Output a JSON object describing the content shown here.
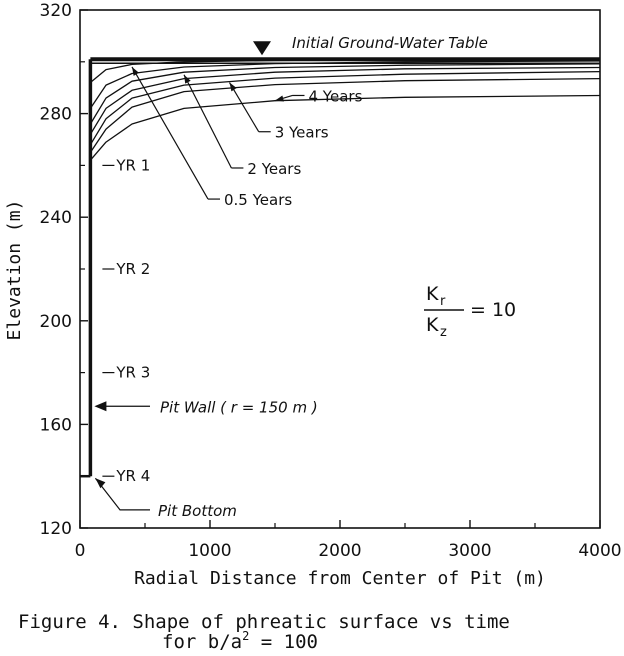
{
  "chart_data": {
    "type": "line",
    "xlabel": "Radial Distance from Center of Pit (m)",
    "ylabel": "Elevation (m)",
    "xlim": [
      0,
      4000
    ],
    "ylim": [
      120,
      320
    ],
    "x_ticks": [
      "0",
      "1000",
      "2000",
      "3000",
      "4000"
    ],
    "y_ticks": [
      "120",
      "160",
      "200",
      "240",
      "280",
      "320"
    ],
    "initial_water_table": {
      "label": "Initial Ground-Water Table",
      "elevation": 301
    },
    "pit_wall": {
      "label": "Pit Wall ( r = 150 m )",
      "x": 80,
      "top": 301,
      "bottom": 140
    },
    "pit_bottom": {
      "label": "Pit Bottom",
      "x": 0,
      "elevation": 140
    },
    "pit_level_labels": [
      {
        "label": "YR 1",
        "elevation": 260
      },
      {
        "label": "YR 2",
        "elevation": 220
      },
      {
        "label": "YR 3",
        "elevation": 180
      },
      {
        "label": "YR 4",
        "elevation": 140
      }
    ],
    "series": [
      {
        "x": [
          80,
          200,
          400,
          800,
          1500,
          2500,
          4000
        ],
        "y": [
          292,
          297,
          299,
          300,
          300.5,
          300.8,
          301
        ]
      },
      {
        "x": [
          80,
          200,
          400,
          800,
          1500,
          2500,
          4000
        ],
        "y": [
          282,
          291,
          295.5,
          298,
          299.3,
          300,
          300.3
        ]
      },
      {
        "x": [
          80,
          200,
          400,
          800,
          1500,
          2500,
          4000
        ],
        "y": [
          276,
          286,
          292.5,
          296,
          297.8,
          298.7,
          299.2
        ]
      },
      {
        "x": [
          80,
          200,
          400,
          800,
          1500,
          2500,
          4000
        ],
        "y": [
          272,
          282,
          289,
          293.5,
          296,
          297.3,
          297.8
        ]
      },
      {
        "x": [
          80,
          200,
          400,
          800,
          1500,
          2500,
          4000
        ],
        "y": [
          268,
          278,
          286,
          291,
          293.7,
          295.2,
          296.2
        ]
      },
      {
        "x": [
          80,
          200,
          400,
          800,
          1500,
          2500,
          4000
        ],
        "y": [
          265,
          274,
          282.5,
          288.5,
          291.2,
          292.7,
          293.5
        ]
      },
      {
        "x": [
          80,
          200,
          400,
          800,
          1500,
          2500,
          4000
        ],
        "y": [
          262,
          269,
          276,
          282,
          285,
          286.3,
          287
        ]
      }
    ],
    "curve_labels": [
      {
        "label": "0.5 Years",
        "x": 1000,
        "y": 247,
        "points_to": [
          400,
          298
        ]
      },
      {
        "label": "2 Years",
        "x": 1180,
        "y": 259,
        "points_to": [
          800,
          295
        ]
      },
      {
        "label": "3 Years",
        "x": 1390,
        "y": 273,
        "points_to": [
          1150,
          292
        ]
      },
      {
        "label": "4 Years",
        "x": 1650,
        "y": 287,
        "points_to": [
          1500,
          285
        ]
      }
    ],
    "ratio_label": {
      "numerator": "K",
      "numerator_sub": "r",
      "denominator": "K",
      "denominator_sub": "z",
      "value": "=  10"
    },
    "caption_line1": "Figure 4.  Shape of phreatic surface vs time",
    "caption_line2": "for b/a",
    "caption_sup": "2",
    "caption_tail": " = 100"
  }
}
